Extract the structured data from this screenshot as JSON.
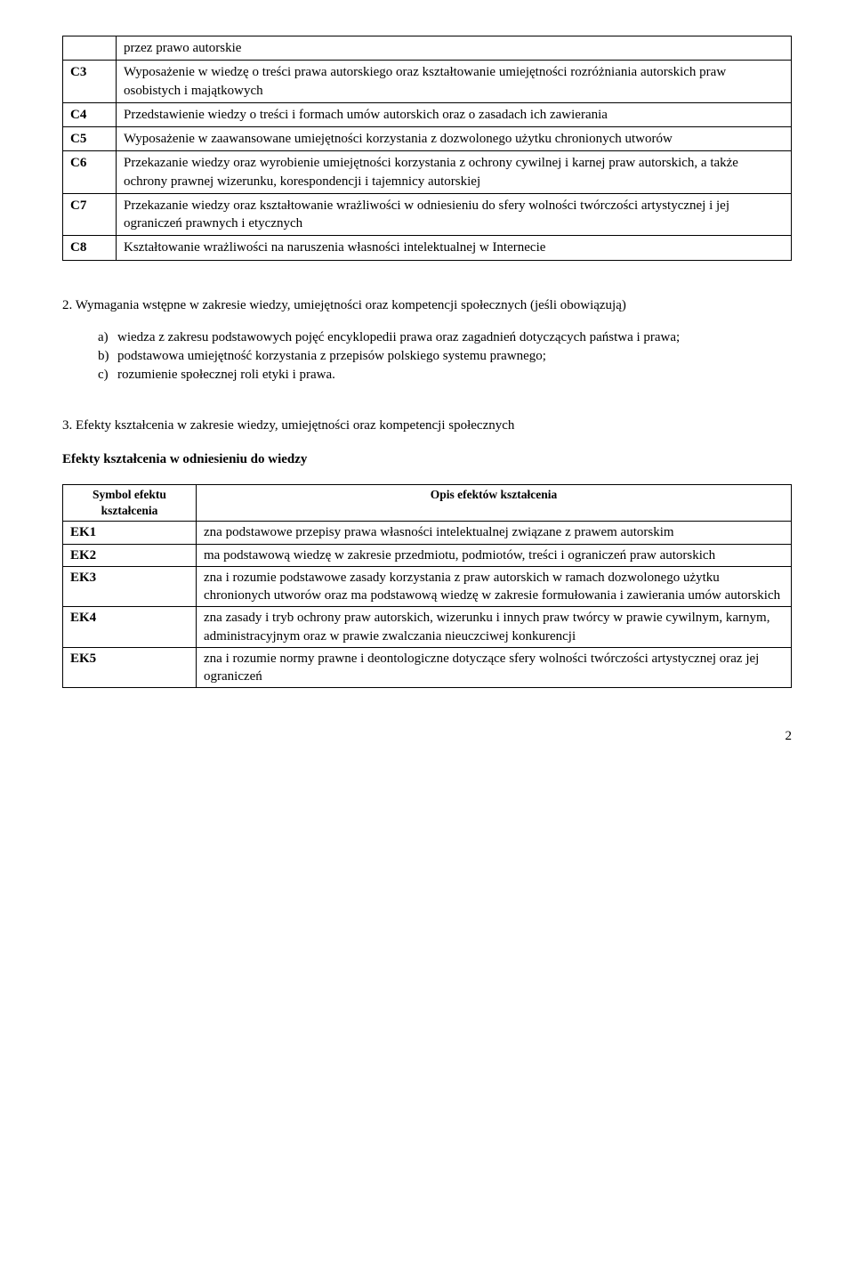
{
  "goals": {
    "preRow": "przez prawo autorskie",
    "rows": [
      {
        "code": "C3",
        "text": "Wyposażenie w wiedzę o treści prawa autorskiego oraz kształtowanie umiejętności rozróżniania autorskich praw osobistych i majątkowych"
      },
      {
        "code": "C4",
        "text": "Przedstawienie wiedzy o treści i formach umów autorskich oraz o zasadach ich zawierania"
      },
      {
        "code": "C5",
        "text": "Wyposażenie w zaawansowane umiejętności korzystania z dozwolonego użytku chronionych utworów"
      },
      {
        "code": "C6",
        "text": "Przekazanie wiedzy oraz wyrobienie umiejętności korzystania z ochrony cywilnej i karnej praw autorskich, a także ochrony prawnej wizerunku, korespondencji i tajemnicy autorskiej"
      },
      {
        "code": "C7",
        "text": "Przekazanie wiedzy oraz kształtowanie wrażliwości w odniesieniu do sfery wolności twórczości artystycznej i jej ograniczeń prawnych i etycznych"
      },
      {
        "code": "C8",
        "text": "Kształtowanie wrażliwości na naruszenia własności intelektualnej w Internecie"
      }
    ]
  },
  "section2": {
    "intro": "2. Wymagania wstępne w zakresie wiedzy, umiejętności oraz kompetencji społecznych (jeśli obowiązują)",
    "items": [
      {
        "marker": "a)",
        "text": "wiedza z zakresu podstawowych pojęć encyklopedii prawa oraz zagadnień dotyczących państwa i prawa;"
      },
      {
        "marker": "b)",
        "text": "podstawowa umiejętność korzystania z przepisów polskiego systemu prawnego;"
      },
      {
        "marker": "c)",
        "text": "rozumienie społecznej roli etyki i prawa."
      }
    ]
  },
  "section3": {
    "title": "3. Efekty kształcenia w zakresie wiedzy, umiejętności oraz kompetencji społecznych",
    "heading": "Efekty kształcenia w odniesieniu do wiedzy",
    "header_symbol": "Symbol efektu kształcenia",
    "header_desc": "Opis efektów kształcenia",
    "rows": [
      {
        "sym": "EK1",
        "text": "zna podstawowe przepisy prawa własności intelektualnej związane z prawem autorskim"
      },
      {
        "sym": "EK2",
        "text": "ma podstawową wiedzę w zakresie przedmiotu, podmiotów, treści i ograniczeń praw autorskich"
      },
      {
        "sym": "EK3",
        "text": "zna i rozumie podstawowe zasady korzystania z praw autorskich w ramach dozwolonego użytku chronionych utworów oraz ma podstawową wiedzę w zakresie formułowania i zawierania umów autorskich"
      },
      {
        "sym": "EK4",
        "text": "zna zasady i tryb ochrony praw autorskich, wizerunku i innych praw twórcy w prawie cywilnym, karnym, administracyjnym oraz w prawie zwalczania nieuczciwej konkurencji"
      },
      {
        "sym": "EK5",
        "text": "zna i rozumie normy prawne i deontologiczne dotyczące sfery wolności twórczości artystycznej oraz jej ograniczeń"
      }
    ]
  },
  "pageNumber": "2"
}
